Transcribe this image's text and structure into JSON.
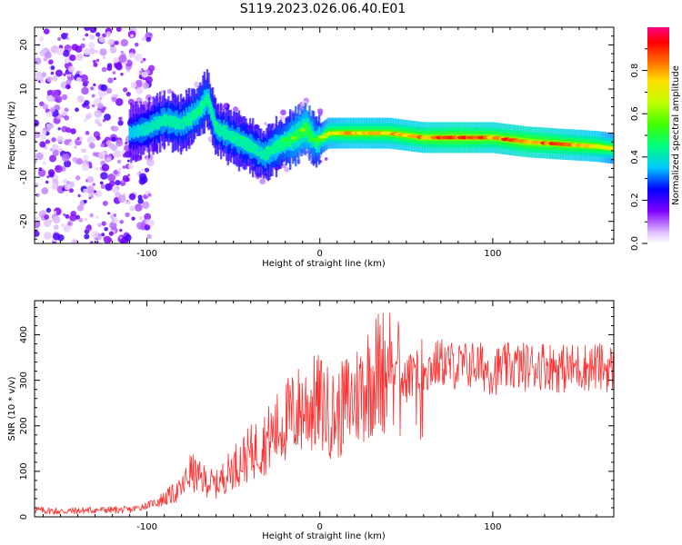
{
  "title": "S119.2023.026.06.40.E01",
  "chart_data": [
    {
      "type": "heatmap",
      "xlabel": "Height of straight line (km)",
      "ylabel": "Frequency (Hz)",
      "xlim": [
        -165,
        170
      ],
      "ylim": [
        -25,
        24
      ],
      "xticks": [
        -100,
        0,
        100
      ],
      "yticks": [
        -20,
        -10,
        0,
        10,
        20
      ],
      "colorbar": {
        "label": "Normalized spectral amplitude",
        "range": [
          0,
          1
        ],
        "ticks": [
          "0.0",
          "0.2",
          "0.4",
          "0.6",
          "0.8"
        ],
        "tick_values": [
          0,
          0.2,
          0.4,
          0.6,
          0.8
        ]
      },
      "ridge": {
        "x": [
          -110,
          -100,
          -90,
          -80,
          -70,
          -65,
          -60,
          -50,
          -40,
          -32,
          -25,
          -15,
          -8,
          -2,
          5,
          20,
          40,
          60,
          80,
          100,
          120,
          140,
          160,
          170
        ],
        "freq_hz": [
          0,
          1,
          3,
          2,
          5,
          8,
          1,
          -1,
          -3,
          -5,
          -3,
          -1,
          1,
          -2,
          0,
          0,
          0,
          -1,
          -1,
          -1,
          -2,
          -2.5,
          -3,
          -3.5
        ],
        "amplitude": [
          0.35,
          0.4,
          0.45,
          0.45,
          0.5,
          0.5,
          0.45,
          0.45,
          0.45,
          0.45,
          0.5,
          0.6,
          0.65,
          0.55,
          0.75,
          0.8,
          0.8,
          0.85,
          0.9,
          0.85,
          0.9,
          0.85,
          0.8,
          0.7
        ]
      },
      "noise_region_x": [
        -165,
        -105
      ]
    },
    {
      "type": "line",
      "xlabel": "Height of straight line (km)",
      "ylabel": "SNR (10 * v/v)",
      "xlim": [
        -165,
        170
      ],
      "ylim": [
        0,
        475
      ],
      "xticks": [
        -100,
        0,
        100
      ],
      "yticks": [
        0,
        100,
        200,
        300,
        400
      ],
      "color": "#ff3030",
      "x": [
        -165,
        -150,
        -130,
        -110,
        -100,
        -90,
        -80,
        -75,
        -70,
        -60,
        -50,
        -40,
        -30,
        -20,
        -10,
        0,
        5,
        10,
        15,
        20,
        30,
        40,
        45,
        50,
        60,
        70,
        80,
        90,
        100,
        110,
        120,
        130,
        140,
        150,
        160,
        170
      ],
      "y": [
        15,
        12,
        15,
        15,
        25,
        40,
        60,
        100,
        85,
        70,
        110,
        140,
        170,
        210,
        240,
        250,
        230,
        220,
        250,
        260,
        310,
        330,
        340,
        300,
        320,
        340,
        330,
        335,
        320,
        330,
        330,
        335,
        325,
        330,
        330,
        325
      ]
    }
  ]
}
